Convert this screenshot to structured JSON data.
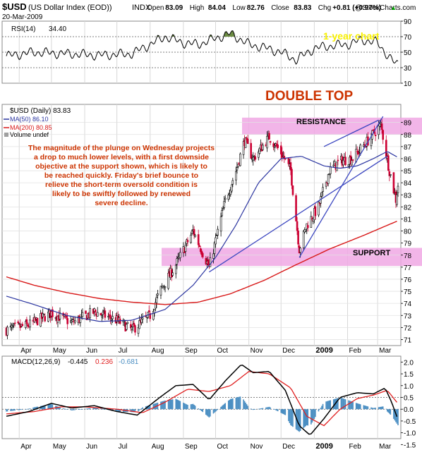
{
  "header": {
    "symbol": "$USD",
    "name": "(US Dollar Index (EOD))",
    "exchange": "INDX",
    "date": "20-Mar-2009",
    "watermark": "@StockCharts.com",
    "ohlc": [
      {
        "label": "Open",
        "value": "83.09"
      },
      {
        "label": "High",
        "value": "84.04"
      },
      {
        "label": "Low",
        "value": "82.76"
      },
      {
        "label": "Close",
        "value": "83.83"
      },
      {
        "label": "Chg",
        "value": "+0.81 (+0.97%)"
      }
    ],
    "up_arrow": "▲"
  },
  "colors": {
    "up": "#000000",
    "down": "#cc0033",
    "ma50": "#2b35a0",
    "ma200": "#d81818",
    "band": "#f0a8e4",
    "rsi_fill": "#6c8c44",
    "macd_line": "#000000",
    "macd_signal": "#e02020",
    "macd_hist": "#4a8ec2",
    "annotation": "#cc3300",
    "chart_title": "#f8f000"
  },
  "annotations": {
    "chart_title": "1-year chart",
    "pattern": "DOUBLE TOP",
    "resistance": "RESISTANCE",
    "support": "SUPPORT",
    "commentary": [
      "The magnitude of the plunge on Wednesday projects",
      "a drop to much lower levels, with a first downside",
      "objective at the support shown, which is likely to",
      "be reached quickly. Friday's brief bounce to",
      "relieve the short-term oversold condition is",
      "likely to be swiftly followed by renewed",
      "severe decline."
    ]
  },
  "legend": {
    "price": "$USD (Daily) 83.83",
    "ma50": "MA(50) 86.10",
    "ma200": "MA(200) 80.85",
    "volume": "Volume undef"
  },
  "chart_data": [
    {
      "type": "line",
      "name": "RSI",
      "label": "RSI(14)",
      "last_value": "34.40",
      "ylim": [
        10,
        90
      ],
      "yticks": [
        "90",
        "70",
        "50",
        "30",
        "10"
      ],
      "reference_lines": [
        70,
        50,
        30
      ],
      "x": [
        "2008-03-20",
        "2008-04-15",
        "2008-05-15",
        "2008-06-15",
        "2008-07-15",
        "2008-08-01",
        "2008-08-15",
        "2008-09-01",
        "2008-09-15",
        "2008-10-01",
        "2008-10-15",
        "2008-11-01",
        "2008-11-15",
        "2008-12-01",
        "2008-12-15",
        "2009-01-01",
        "2009-01-15",
        "2009-02-01",
        "2009-02-15",
        "2009-03-01",
        "2009-03-15",
        "2009-03-20"
      ],
      "values": [
        45,
        50,
        48,
        46,
        48,
        60,
        70,
        62,
        60,
        68,
        74,
        60,
        56,
        50,
        40,
        55,
        58,
        60,
        66,
        62,
        38,
        34.4
      ],
      "grid": true
    },
    {
      "type": "candlestick",
      "name": "$USD",
      "label": "$USD (Daily) 83.83",
      "ylim": [
        70.5,
        90.5
      ],
      "yticks": [
        "89",
        "88",
        "87",
        "86",
        "85",
        "84",
        "83",
        "82",
        "81",
        "80",
        "79",
        "78",
        "77",
        "76",
        "75",
        "74",
        "73",
        "72",
        "71"
      ],
      "xticks": [
        "Apr",
        "May",
        "Jun",
        "Jul",
        "Aug",
        "Sep",
        "Oct",
        "Nov",
        "Dec",
        "2009",
        "Feb",
        "Mar"
      ],
      "xtick_dates": [
        "2008-04-01",
        "2008-05-01",
        "2008-06-01",
        "2008-07-01",
        "2008-08-01",
        "2008-09-01",
        "2008-10-01",
        "2008-11-01",
        "2008-12-01",
        "2009-01-01",
        "2009-02-01",
        "2009-03-01"
      ],
      "x_range": [
        "2008-03-20",
        "2009-03-20"
      ],
      "close_path": [
        [
          "2008-03-20",
          71.8
        ],
        [
          "2008-04-10",
          72.2
        ],
        [
          "2008-05-01",
          73.2
        ],
        [
          "2008-05-20",
          72.4
        ],
        [
          "2008-06-10",
          73.3
        ],
        [
          "2008-07-01",
          72.6
        ],
        [
          "2008-07-15",
          71.8
        ],
        [
          "2008-08-01",
          73.0
        ],
        [
          "2008-08-10",
          75.0
        ],
        [
          "2008-08-25",
          77.2
        ],
        [
          "2008-09-10",
          80.0
        ],
        [
          "2008-09-25",
          77.0
        ],
        [
          "2008-10-10",
          82.5
        ],
        [
          "2008-10-20",
          85.0
        ],
        [
          "2008-10-28",
          87.5
        ],
        [
          "2008-11-05",
          86.0
        ],
        [
          "2008-11-20",
          87.8
        ],
        [
          "2008-12-01",
          86.5
        ],
        [
          "2008-12-10",
          85.0
        ],
        [
          "2008-12-18",
          78.5
        ],
        [
          "2008-12-25",
          80.5
        ],
        [
          "2009-01-05",
          82.0
        ],
        [
          "2009-01-15",
          85.0
        ],
        [
          "2009-01-25",
          85.8
        ],
        [
          "2009-02-05",
          86.0
        ],
        [
          "2009-02-20",
          87.5
        ],
        [
          "2009-03-04",
          88.8
        ],
        [
          "2009-03-12",
          85.0
        ],
        [
          "2009-03-18",
          82.6
        ],
        [
          "2009-03-20",
          83.83
        ]
      ],
      "ma50": [
        [
          "2008-03-20",
          74.6
        ],
        [
          "2008-04-15",
          73.9
        ],
        [
          "2008-05-15",
          73.0
        ],
        [
          "2008-06-15",
          72.5
        ],
        [
          "2008-07-15",
          72.6
        ],
        [
          "2008-08-15",
          73.5
        ],
        [
          "2008-09-10",
          75.5
        ],
        [
          "2008-10-01",
          77.8
        ],
        [
          "2008-10-20",
          80.5
        ],
        [
          "2008-11-10",
          84.0
        ],
        [
          "2008-12-01",
          86.0
        ],
        [
          "2008-12-20",
          86.2
        ],
        [
          "2009-01-10",
          85.4
        ],
        [
          "2009-01-25",
          85.2
        ],
        [
          "2009-02-10",
          85.4
        ],
        [
          "2009-02-25",
          86.0
        ],
        [
          "2009-03-10",
          86.6
        ],
        [
          "2009-03-20",
          86.1
        ]
      ],
      "ma200": [
        [
          "2008-03-20",
          76.2
        ],
        [
          "2008-04-15",
          75.5
        ],
        [
          "2008-05-15",
          74.9
        ],
        [
          "2008-06-15",
          74.4
        ],
        [
          "2008-07-15",
          74.1
        ],
        [
          "2008-08-15",
          73.9
        ],
        [
          "2008-09-15",
          74.1
        ],
        [
          "2008-10-15",
          74.8
        ],
        [
          "2008-11-15",
          75.9
        ],
        [
          "2008-12-15",
          77.2
        ],
        [
          "2009-01-15",
          78.5
        ],
        [
          "2009-02-15",
          79.6
        ],
        [
          "2009-03-20",
          80.85
        ]
      ],
      "resistance_band": [
        88.0,
        89.4
      ],
      "support_band": [
        77.1,
        78.6
      ],
      "trendlines": [
        [
          [
            "2008-12-18",
            77.8
          ],
          [
            "2009-03-06",
            89.5
          ]
        ],
        [
          [
            "2009-01-10",
            87.0
          ],
          [
            "2009-03-02",
            89.2
          ]
        ],
        [
          [
            "2008-09-25",
            76.6
          ],
          [
            "2009-03-10",
            86.2
          ]
        ]
      ]
    },
    {
      "type": "line",
      "name": "MACD",
      "label": "MACD(12,26,9)",
      "values_text": [
        "-0.445",
        "0.236",
        "-0.681"
      ],
      "ylim": [
        -1.25,
        2.25
      ],
      "yticks": [
        "2.0",
        "1.5",
        "1.0",
        "0.5",
        "0.0",
        "-0.5",
        "-1.0",
        "-1.5"
      ],
      "macd": [
        [
          "2008-03-20",
          -0.3
        ],
        [
          "2008-04-10",
          -0.1
        ],
        [
          "2008-05-01",
          0.25
        ],
        [
          "2008-05-20",
          0.05
        ],
        [
          "2008-06-10",
          0.15
        ],
        [
          "2008-07-01",
          -0.1
        ],
        [
          "2008-07-20",
          -0.25
        ],
        [
          "2008-08-10",
          0.5
        ],
        [
          "2008-08-25",
          1.0
        ],
        [
          "2008-09-10",
          1.05
        ],
        [
          "2008-09-25",
          0.4
        ],
        [
          "2008-10-10",
          1.2
        ],
        [
          "2008-10-25",
          1.9
        ],
        [
          "2008-11-05",
          1.55
        ],
        [
          "2008-11-20",
          1.6
        ],
        [
          "2008-12-05",
          0.8
        ],
        [
          "2008-12-18",
          -0.7
        ],
        [
          "2008-12-28",
          -1.1
        ],
        [
          "2009-01-10",
          -0.4
        ],
        [
          "2009-01-25",
          0.5
        ],
        [
          "2009-02-10",
          0.7
        ],
        [
          "2009-02-25",
          0.65
        ],
        [
          "2009-03-08",
          0.9
        ],
        [
          "2009-03-14",
          0.3
        ],
        [
          "2009-03-20",
          -0.445
        ]
      ],
      "signal": [
        [
          "2008-03-20",
          -0.2
        ],
        [
          "2008-04-15",
          -0.1
        ],
        [
          "2008-05-10",
          0.1
        ],
        [
          "2008-06-01",
          0.1
        ],
        [
          "2008-07-01",
          0.0
        ],
        [
          "2008-07-25",
          -0.15
        ],
        [
          "2008-08-15",
          0.3
        ],
        [
          "2008-09-05",
          0.85
        ],
        [
          "2008-09-25",
          0.75
        ],
        [
          "2008-10-15",
          1.0
        ],
        [
          "2008-11-01",
          1.6
        ],
        [
          "2008-11-20",
          1.5
        ],
        [
          "2008-12-10",
          0.9
        ],
        [
          "2008-12-25",
          -0.3
        ],
        [
          "2009-01-10",
          -0.7
        ],
        [
          "2009-01-25",
          0.0
        ],
        [
          "2009-02-10",
          0.45
        ],
        [
          "2009-02-25",
          0.6
        ],
        [
          "2009-03-10",
          0.8
        ],
        [
          "2009-03-20",
          0.236
        ]
      ],
      "histogram": -0.681,
      "reference_lines": [
        0.5,
        0
      ]
    }
  ]
}
